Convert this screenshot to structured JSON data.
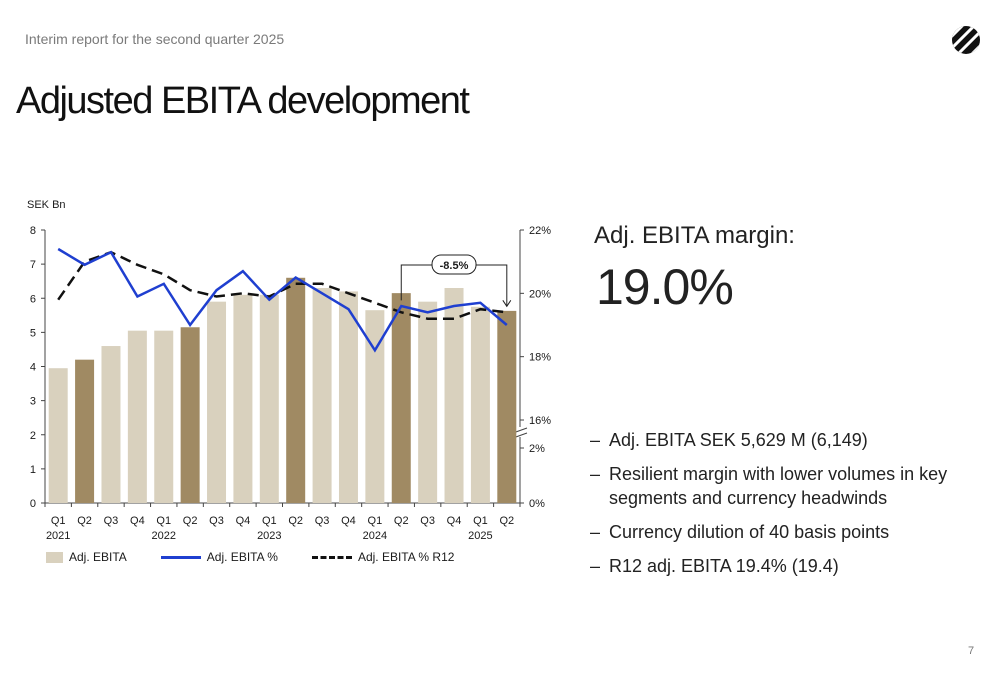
{
  "header": {
    "report_title": "Interim report for the second quarter 2025",
    "page_title": "Adjusted EBITA development",
    "logo_icon": "brand-logo-icon"
  },
  "chart_data": {
    "type": "bar",
    "unit_label": "SEK Bn",
    "categories": [
      "Q1",
      "Q2",
      "Q3",
      "Q4",
      "Q1",
      "Q2",
      "Q3",
      "Q4",
      "Q1",
      "Q2",
      "Q3",
      "Q4",
      "Q1",
      "Q2",
      "Q3",
      "Q4",
      "Q1",
      "Q2"
    ],
    "year_labels": [
      {
        "index": 0,
        "label": "2021"
      },
      {
        "index": 4,
        "label": "2022"
      },
      {
        "index": 8,
        "label": "2023"
      },
      {
        "index": 12,
        "label": "2024"
      },
      {
        "index": 16,
        "label": "2025"
      }
    ],
    "bar_values": [
      3.95,
      4.2,
      4.6,
      5.05,
      5.05,
      5.15,
      5.9,
      6.1,
      6.1,
      6.6,
      6.3,
      6.2,
      5.65,
      6.15,
      5.9,
      6.3,
      5.75,
      5.63
    ],
    "highlight_indices": [
      1,
      5,
      9,
      13,
      17
    ],
    "y_left": {
      "min": 0,
      "max": 8,
      "ticks": [
        "0",
        "1",
        "2",
        "3",
        "4",
        "5",
        "6",
        "7",
        "8"
      ]
    },
    "y_right": {
      "ticks_labels": [
        "0%",
        "2%",
        "16%",
        "18%",
        "20%",
        "22%"
      ],
      "break_between": [
        "2%",
        "16%"
      ]
    },
    "series": [
      {
        "name": "Adj. EBITA %",
        "values": [
          21.4,
          20.9,
          21.3,
          19.9,
          20.3,
          19.0,
          20.1,
          20.7,
          19.8,
          20.5,
          20.0,
          19.5,
          18.2,
          19.6,
          19.4,
          19.6,
          19.7,
          19.0
        ]
      },
      {
        "name": "Adj. EBITA % R12",
        "values": [
          19.8,
          21.0,
          21.3,
          20.9,
          20.6,
          20.1,
          19.9,
          20.0,
          19.9,
          20.3,
          20.3,
          20.0,
          19.7,
          19.4,
          19.2,
          19.2,
          19.5,
          19.4
        ]
      }
    ],
    "annotation": "-8.5%",
    "annotation_from_index": 13,
    "annotation_to_index": 17,
    "legend": [
      "Adj. EBITA",
      "Adj. EBITA %",
      "Adj. EBITA % R12"
    ],
    "colors": {
      "bar": "#d9d1be",
      "bar_highlight": "#a08a63",
      "line": "#1f3fd0",
      "r12": "#111111"
    }
  },
  "kpi": {
    "label": "Adj. EBITA margin:",
    "value": "19.0%"
  },
  "bullets": [
    "Adj. EBITA SEK 5,629 M (6,149)",
    "Resilient margin with lower volumes in key segments and currency headwinds",
    "Currency dilution of 40 basis points",
    "R12 adj. EBITA 19.4% (19.4)"
  ],
  "footer": {
    "page_number": "7"
  }
}
